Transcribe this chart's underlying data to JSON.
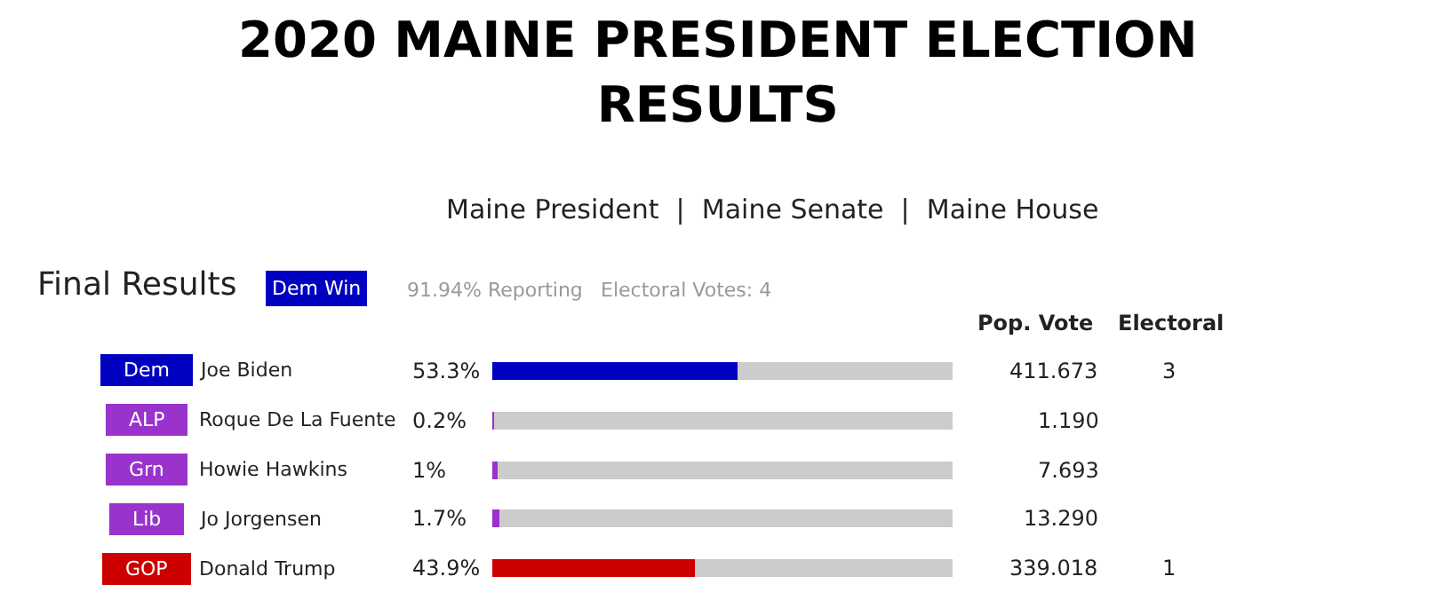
{
  "chart_data": {
    "type": "bar",
    "orientation": "horizontal",
    "stacked": true,
    "title": "2020 MAINE PRESIDENT ELECTION RESULTS",
    "subtitle": "Maine President  |  Maine Senate  |  Maine House",
    "categories": [
      "Joe Biden",
      "Roque De La Fuente",
      "Howie Hawkins",
      "Jo Jorgensen",
      "Donald Trump"
    ],
    "series": [
      {
        "colors": [
          "#0000c0",
          "#9933cc",
          "#9933cc",
          "#9933cc",
          "#cc0000"
        ],
        "values": [
          53.3,
          0.2,
          1,
          1.7,
          43.9
        ],
        "value_labels": [
          "53.3%",
          "0.2%",
          "1%",
          "1.7%",
          "43.9%"
        ]
      },
      {
        "color": "#cccccc",
        "values": [
          46.7,
          99.8,
          99,
          98.3,
          56.1
        ]
      }
    ],
    "xlim": [
      0,
      100
    ],
    "tick_labels": false,
    "annotations": [
      "Final Results",
      "Dem Win",
      "91.94% Reporting",
      "Electoral Votes: 4",
      "Pop. Vote",
      "Electoral",
      "Dem",
      "411.673",
      "3",
      "ALP",
      "1.190",
      "Grn",
      "7.693",
      "Lib",
      "13.290",
      "GOP",
      "339.018",
      "1"
    ]
  }
}
